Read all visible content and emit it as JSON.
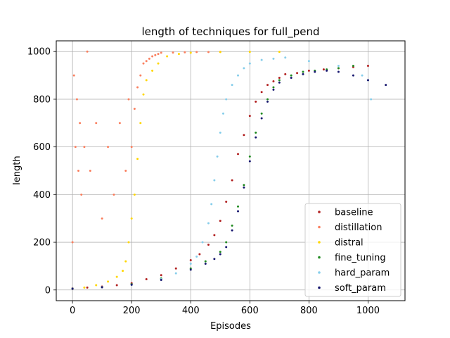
{
  "chart_data": {
    "type": "scatter",
    "title": "length of techniques for full_pend",
    "xlabel": "Episodes",
    "ylabel": "length",
    "xlim": [
      -55,
      1125
    ],
    "ylim": [
      -45,
      1045
    ],
    "xticks": [
      0,
      200,
      400,
      600,
      800,
      1000
    ],
    "yticks": [
      0,
      200,
      400,
      600,
      800,
      1000
    ],
    "grid": true,
    "legend_position": "lower-right",
    "series": [
      {
        "name": "baseline",
        "color": "#b22222",
        "points": [
          [
            0,
            7
          ],
          [
            50,
            10
          ],
          [
            100,
            14
          ],
          [
            150,
            20
          ],
          [
            200,
            28
          ],
          [
            250,
            45
          ],
          [
            300,
            62
          ],
          [
            350,
            90
          ],
          [
            400,
            125
          ],
          [
            430,
            150
          ],
          [
            460,
            190
          ],
          [
            480,
            230
          ],
          [
            500,
            290
          ],
          [
            520,
            370
          ],
          [
            540,
            460
          ],
          [
            560,
            570
          ],
          [
            580,
            650
          ],
          [
            600,
            730
          ],
          [
            620,
            790
          ],
          [
            640,
            830
          ],
          [
            660,
            860
          ],
          [
            680,
            875
          ],
          [
            700,
            890
          ],
          [
            720,
            905
          ],
          [
            760,
            910
          ],
          [
            800,
            920
          ],
          [
            850,
            925
          ],
          [
            900,
            930
          ],
          [
            950,
            935
          ],
          [
            1000,
            940
          ]
        ]
      },
      {
        "name": "distillation",
        "color": "#fa8060",
        "points": [
          [
            0,
            200
          ],
          [
            5,
            900
          ],
          [
            10,
            600
          ],
          [
            15,
            800
          ],
          [
            20,
            500
          ],
          [
            25,
            700
          ],
          [
            30,
            400
          ],
          [
            40,
            600
          ],
          [
            50,
            1000
          ],
          [
            60,
            500
          ],
          [
            80,
            700
          ],
          [
            100,
            300
          ],
          [
            120,
            600
          ],
          [
            140,
            400
          ],
          [
            160,
            700
          ],
          [
            180,
            500
          ],
          [
            190,
            800
          ],
          [
            200,
            600
          ],
          [
            210,
            760
          ],
          [
            220,
            850
          ],
          [
            230,
            900
          ],
          [
            240,
            950
          ],
          [
            250,
            960
          ],
          [
            260,
            970
          ],
          [
            270,
            980
          ],
          [
            280,
            985
          ],
          [
            290,
            990
          ],
          [
            300,
            995
          ],
          [
            340,
            996
          ],
          [
            380,
            997
          ],
          [
            420,
            998
          ],
          [
            460,
            998
          ],
          [
            500,
            999
          ]
        ]
      },
      {
        "name": "distral",
        "color": "#ffd700",
        "points": [
          [
            0,
            5
          ],
          [
            40,
            10
          ],
          [
            80,
            20
          ],
          [
            120,
            35
          ],
          [
            150,
            55
          ],
          [
            170,
            80
          ],
          [
            180,
            120
          ],
          [
            190,
            200
          ],
          [
            200,
            300
          ],
          [
            210,
            400
          ],
          [
            220,
            550
          ],
          [
            230,
            700
          ],
          [
            240,
            820
          ],
          [
            250,
            880
          ],
          [
            270,
            920
          ],
          [
            290,
            950
          ],
          [
            320,
            980
          ],
          [
            360,
            990
          ],
          [
            400,
            995
          ],
          [
            500,
            998
          ],
          [
            600,
            999
          ],
          [
            700,
            999
          ]
        ]
      },
      {
        "name": "fine_tuning",
        "color": "#228b22",
        "points": [
          [
            0,
            6
          ],
          [
            100,
            12
          ],
          [
            200,
            24
          ],
          [
            300,
            48
          ],
          [
            400,
            90
          ],
          [
            450,
            120
          ],
          [
            500,
            160
          ],
          [
            520,
            200
          ],
          [
            540,
            270
          ],
          [
            560,
            350
          ],
          [
            580,
            440
          ],
          [
            600,
            560
          ],
          [
            620,
            660
          ],
          [
            640,
            740
          ],
          [
            660,
            800
          ],
          [
            680,
            850
          ],
          [
            700,
            880
          ],
          [
            740,
            900
          ],
          [
            780,
            915
          ],
          [
            820,
            920
          ],
          [
            860,
            925
          ],
          [
            900,
            930
          ],
          [
            950,
            940
          ]
        ]
      },
      {
        "name": "hard_param",
        "color": "#87ceeb",
        "points": [
          [
            0,
            6
          ],
          [
            100,
            12
          ],
          [
            200,
            22
          ],
          [
            300,
            45
          ],
          [
            350,
            70
          ],
          [
            400,
            110
          ],
          [
            420,
            140
          ],
          [
            440,
            200
          ],
          [
            460,
            280
          ],
          [
            470,
            360
          ],
          [
            480,
            460
          ],
          [
            490,
            560
          ],
          [
            500,
            660
          ],
          [
            510,
            740
          ],
          [
            520,
            800
          ],
          [
            540,
            860
          ],
          [
            560,
            900
          ],
          [
            580,
            930
          ],
          [
            600,
            950
          ],
          [
            640,
            965
          ],
          [
            680,
            970
          ],
          [
            720,
            975
          ],
          [
            800,
            960
          ],
          [
            900,
            940
          ],
          [
            980,
            900
          ],
          [
            1000,
            880
          ],
          [
            1010,
            800
          ]
        ]
      },
      {
        "name": "soft_param",
        "color": "#191970",
        "points": [
          [
            0,
            5
          ],
          [
            100,
            11
          ],
          [
            200,
            22
          ],
          [
            300,
            42
          ],
          [
            400,
            85
          ],
          [
            450,
            110
          ],
          [
            480,
            130
          ],
          [
            500,
            150
          ],
          [
            520,
            180
          ],
          [
            540,
            250
          ],
          [
            560,
            330
          ],
          [
            580,
            430
          ],
          [
            600,
            540
          ],
          [
            620,
            640
          ],
          [
            640,
            720
          ],
          [
            660,
            790
          ],
          [
            680,
            840
          ],
          [
            700,
            870
          ],
          [
            740,
            890
          ],
          [
            780,
            905
          ],
          [
            820,
            915
          ],
          [
            860,
            920
          ],
          [
            900,
            915
          ],
          [
            950,
            900
          ],
          [
            1000,
            880
          ],
          [
            1060,
            860
          ]
        ]
      }
    ]
  }
}
